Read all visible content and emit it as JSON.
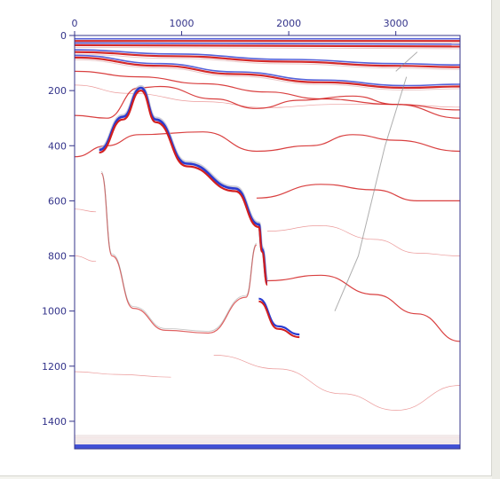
{
  "chart_data": {
    "type": "seismic-section",
    "title": "",
    "xlabel": "",
    "ylabel": "",
    "xlim": [
      0,
      3600
    ],
    "ylim": [
      0,
      1500
    ],
    "x_ticks": [
      0,
      1000,
      2000,
      3000
    ],
    "y_ticks": [
      0,
      200,
      400,
      600,
      800,
      1000,
      1200,
      1400
    ],
    "grid": false,
    "colors": {
      "axis": "#33338a",
      "positive": "#d21e1e",
      "negative": "#2a3bd0",
      "background": "#ffffff"
    },
    "horizons": [
      {
        "points": [
          [
            0,
            20
          ],
          [
            3600,
            20
          ]
        ],
        "polarity": "strong"
      },
      {
        "points": [
          [
            0,
            35
          ],
          [
            3600,
            40
          ]
        ],
        "polarity": "strong"
      },
      {
        "points": [
          [
            0,
            60
          ],
          [
            900,
            75
          ],
          [
            2000,
            95
          ],
          [
            3000,
            110
          ],
          [
            3600,
            115
          ]
        ],
        "polarity": "strong"
      },
      {
        "points": [
          [
            0,
            80
          ],
          [
            800,
            110
          ],
          [
            1500,
            140
          ],
          [
            2300,
            170
          ],
          [
            3100,
            190
          ],
          [
            3600,
            185
          ]
        ],
        "polarity": "strong"
      },
      {
        "points": [
          [
            0,
            130
          ],
          [
            600,
            150
          ],
          [
            1200,
            175
          ],
          [
            1800,
            205
          ],
          [
            2300,
            230
          ],
          [
            3000,
            250
          ],
          [
            3600,
            270
          ]
        ],
        "polarity": "medium"
      },
      {
        "points": [
          [
            0,
            180
          ],
          [
            500,
            210
          ],
          [
            1200,
            240
          ],
          [
            1800,
            262
          ],
          [
            2400,
            250
          ],
          [
            3000,
            250
          ],
          [
            3600,
            260
          ]
        ],
        "polarity": "weak"
      },
      {
        "points": [
          [
            0,
            290
          ],
          [
            300,
            300
          ],
          [
            600,
            190
          ],
          [
            800,
            185
          ],
          [
            1300,
            230
          ],
          [
            1700,
            265
          ],
          [
            2100,
            235
          ],
          [
            2600,
            220
          ],
          [
            3000,
            250
          ],
          [
            3600,
            300
          ]
        ],
        "polarity": "medium"
      },
      {
        "points": [
          [
            0,
            440
          ],
          [
            300,
            400
          ],
          [
            600,
            360
          ],
          [
            1200,
            350
          ],
          [
            1700,
            420
          ],
          [
            2200,
            400
          ],
          [
            2600,
            360
          ],
          [
            3000,
            380
          ],
          [
            3600,
            420
          ]
        ],
        "polarity": "medium"
      },
      {
        "points": [
          [
            1700,
            590
          ],
          [
            2300,
            540
          ],
          [
            2800,
            560
          ],
          [
            3200,
            600
          ],
          [
            3600,
            600
          ]
        ],
        "polarity": "medium"
      },
      {
        "points": [
          [
            1800,
            710
          ],
          [
            2300,
            690
          ],
          [
            2800,
            740
          ],
          [
            3200,
            790
          ],
          [
            3600,
            800
          ]
        ],
        "polarity": "weak"
      },
      {
        "points": [
          [
            0,
            630
          ],
          [
            200,
            640
          ]
        ],
        "polarity": "weak"
      },
      {
        "points": [
          [
            0,
            800
          ],
          [
            200,
            820
          ]
        ],
        "polarity": "weak"
      },
      {
        "points": [
          [
            1800,
            890
          ],
          [
            2300,
            870
          ],
          [
            2800,
            940
          ],
          [
            3200,
            1010
          ],
          [
            3600,
            1110
          ]
        ],
        "polarity": "medium"
      },
      {
        "points": [
          [
            1300,
            1160
          ],
          [
            1900,
            1210
          ],
          [
            2500,
            1300
          ],
          [
            3000,
            1360
          ],
          [
            3600,
            1270
          ]
        ],
        "polarity": "weak"
      },
      {
        "points": [
          [
            0,
            1220
          ],
          [
            400,
            1230
          ],
          [
            900,
            1240
          ]
        ],
        "polarity": "weak"
      }
    ],
    "salt_body": {
      "top": [
        [
          230,
          420
        ],
        [
          450,
          300
        ],
        [
          620,
          195
        ],
        [
          760,
          310
        ],
        [
          1050,
          470
        ],
        [
          1500,
          560
        ],
        [
          1720,
          690
        ],
        [
          1750,
          780
        ],
        [
          1800,
          900
        ]
      ],
      "flank_right": [
        [
          1720,
          960
        ],
        [
          1900,
          1060
        ],
        [
          2100,
          1090
        ]
      ],
      "base": [
        [
          250,
          500
        ],
        [
          350,
          800
        ],
        [
          550,
          990
        ],
        [
          850,
          1070
        ],
        [
          1250,
          1080
        ],
        [
          1600,
          950
        ],
        [
          1700,
          760
        ]
      ]
    },
    "faults": [
      {
        "points": [
          [
            3100,
            150
          ],
          [
            2900,
            400
          ],
          [
            2650,
            800
          ],
          [
            2430,
            1000
          ]
        ]
      },
      {
        "points": [
          [
            3200,
            60
          ],
          [
            3000,
            130
          ]
        ]
      }
    ],
    "bottom_noise_band": [
      1450,
      1510
    ]
  }
}
